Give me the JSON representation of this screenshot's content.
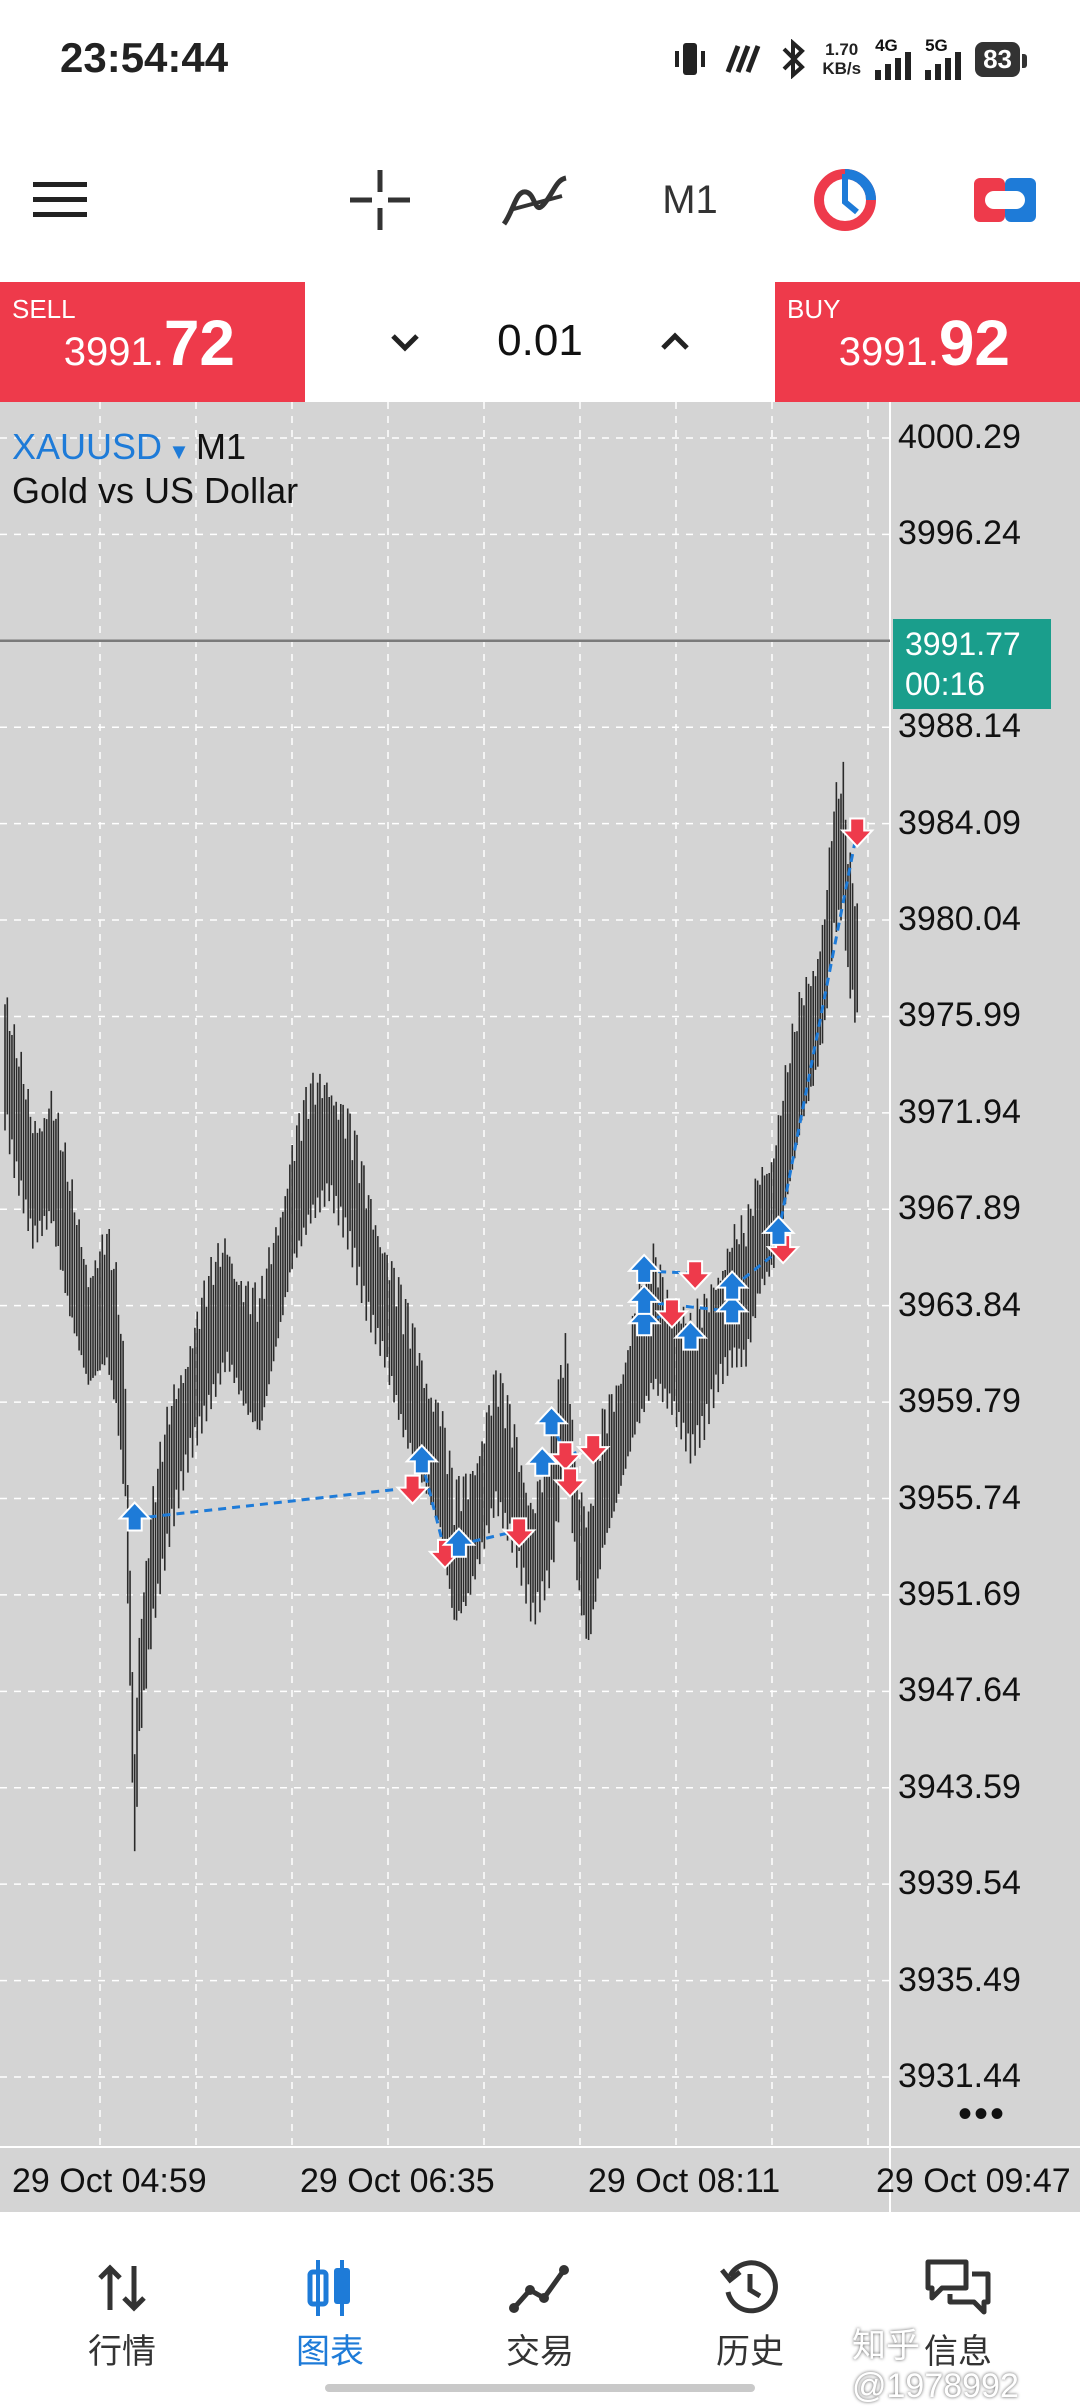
{
  "status": {
    "time": "23:54:44",
    "net_speed_value": "1.70",
    "net_speed_unit": "KB/s",
    "net1": "4G",
    "net2": "5G",
    "battery": "83"
  },
  "toolbar": {
    "timeframe": "M1",
    "icons": [
      "menu-icon",
      "crosshair-icon",
      "indicators-icon",
      "timeframe-label",
      "chart-color-icon",
      "one-click-trading-icon"
    ]
  },
  "trade": {
    "sell_label": "SELL",
    "sell_small": "3991.",
    "sell_big": "72",
    "buy_label": "BUY",
    "buy_small": "3991.",
    "buy_big": "92",
    "lot": "0.01"
  },
  "chart": {
    "symbol": "XAUUSD",
    "timeframe": "M1",
    "description": "Gold vs US Dollar",
    "current_price": "3991.77",
    "countdown": "00:16",
    "more": "•••",
    "colors": {
      "bg": "#d4d4d4",
      "buy": "#1e7bd8",
      "sell": "#ee3a4b",
      "price_tag": "#1a9e8c",
      "candles": "#222222"
    }
  },
  "chart_data": {
    "type": "line",
    "title": "XAUUSD M1",
    "xlabel": "",
    "ylabel": "",
    "ylim": [
      3928.5,
      4001.8
    ],
    "y_ticks": [
      "4000.29",
      "3996.24",
      "3988.14",
      "3984.09",
      "3980.04",
      "3975.99",
      "3971.94",
      "3967.89",
      "3963.84",
      "3959.79",
      "3955.74",
      "3951.69",
      "3947.64",
      "3943.59",
      "3939.54",
      "3935.49",
      "3931.44"
    ],
    "x_ticks": [
      "29 Oct 04:59",
      "29 Oct 06:35",
      "29 Oct 08:11",
      "29 Oct 09:47"
    ],
    "current_price": 3991.77,
    "price_path": [
      [
        0,
        3974
      ],
      [
        2,
        3972
      ],
      [
        6,
        3969
      ],
      [
        10,
        3970
      ],
      [
        14,
        3966
      ],
      [
        18,
        3963
      ],
      [
        22,
        3964
      ],
      [
        24,
        3962
      ],
      [
        26,
        3958
      ],
      [
        27,
        3950
      ],
      [
        28,
        3943
      ],
      [
        29,
        3948
      ],
      [
        32,
        3953
      ],
      [
        36,
        3957
      ],
      [
        40,
        3960
      ],
      [
        44,
        3962
      ],
      [
        48,
        3964
      ],
      [
        52,
        3962
      ],
      [
        55,
        3961
      ],
      [
        58,
        3964
      ],
      [
        62,
        3968
      ],
      [
        66,
        3970
      ],
      [
        70,
        3971
      ],
      [
        74,
        3969
      ],
      [
        78,
        3966
      ],
      [
        82,
        3964
      ],
      [
        86,
        3961
      ],
      [
        90,
        3959
      ],
      [
        94,
        3957
      ],
      [
        97,
        3953
      ],
      [
        100,
        3954
      ],
      [
        103,
        3956
      ],
      [
        106,
        3958
      ],
      [
        110,
        3956
      ],
      [
        114,
        3953
      ],
      [
        118,
        3955
      ],
      [
        121,
        3960
      ],
      [
        124,
        3954
      ],
      [
        126,
        3952
      ],
      [
        129,
        3956
      ],
      [
        132,
        3958
      ],
      [
        136,
        3961
      ],
      [
        140,
        3963
      ],
      [
        144,
        3962
      ],
      [
        148,
        3960
      ],
      [
        151,
        3961
      ],
      [
        154,
        3963
      ],
      [
        157,
        3964
      ],
      [
        160,
        3964
      ],
      [
        163,
        3967
      ],
      [
        166,
        3968
      ],
      [
        169,
        3971
      ],
      [
        172,
        3974
      ],
      [
        175,
        3976
      ],
      [
        177,
        3978
      ],
      [
        179,
        3982
      ],
      [
        181,
        3983
      ],
      [
        182,
        3980
      ],
      [
        184,
        3978
      ]
    ],
    "trades": [
      {
        "side": "buy",
        "x": 28,
        "price": 3954.9
      },
      {
        "side": "sell",
        "x": 88,
        "price": 3956.2
      },
      {
        "side": "buy",
        "x": 90,
        "price": 3957.3
      },
      {
        "side": "sell",
        "x": 95,
        "price": 3953.5
      },
      {
        "side": "buy",
        "x": 98,
        "price": 3953.8
      },
      {
        "side": "sell",
        "x": 111,
        "price": 3954.4
      },
      {
        "side": "buy",
        "x": 116,
        "price": 3957.2
      },
      {
        "side": "buy",
        "x": 118,
        "price": 3958.9
      },
      {
        "side": "sell",
        "x": 121,
        "price": 3957.6
      },
      {
        "side": "sell",
        "x": 122,
        "price": 3956.5
      },
      {
        "side": "sell",
        "x": 127,
        "price": 3957.9
      },
      {
        "side": "buy",
        "x": 138,
        "price": 3963.1
      },
      {
        "side": "buy",
        "x": 138,
        "price": 3964.0
      },
      {
        "side": "buy",
        "x": 138,
        "price": 3965.3
      },
      {
        "side": "sell",
        "x": 144,
        "price": 3963.6
      },
      {
        "side": "sell",
        "x": 149,
        "price": 3965.2
      },
      {
        "side": "buy",
        "x": 148,
        "price": 3962.5
      },
      {
        "side": "buy",
        "x": 157,
        "price": 3963.6
      },
      {
        "side": "buy",
        "x": 157,
        "price": 3964.6
      },
      {
        "side": "sell",
        "x": 168,
        "price": 3966.3
      },
      {
        "side": "buy",
        "x": 167,
        "price": 3966.9
      },
      {
        "side": "sell",
        "x": 184,
        "price": 3983.8
      }
    ],
    "links": [
      [
        0,
        1
      ],
      [
        2,
        3
      ],
      [
        4,
        5
      ],
      [
        7,
        8
      ],
      [
        6,
        10
      ],
      [
        11,
        14
      ],
      [
        13,
        15
      ],
      [
        12,
        17
      ],
      [
        18,
        19
      ],
      [
        20,
        21
      ]
    ]
  },
  "nav": {
    "items": [
      {
        "label": "行情",
        "icon": "quotes-icon"
      },
      {
        "label": "图表",
        "icon": "chart-icon"
      },
      {
        "label": "交易",
        "icon": "trade-icon"
      },
      {
        "label": "历史",
        "icon": "history-icon"
      },
      {
        "label": "信息",
        "icon": "messages-icon"
      }
    ],
    "active": 1
  },
  "watermark": "知乎 @1978992"
}
